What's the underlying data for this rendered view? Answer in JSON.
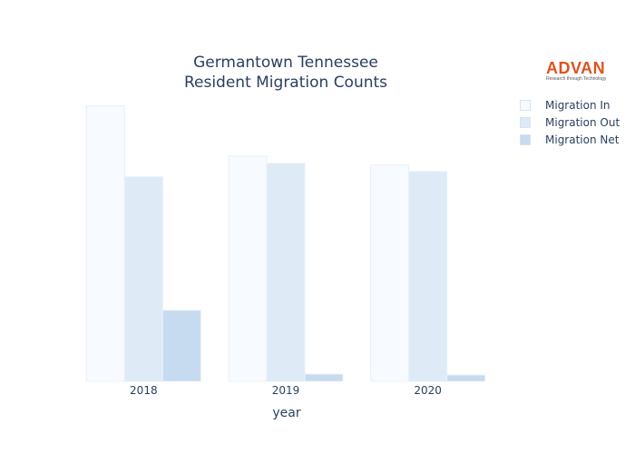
{
  "title_lines": [
    "Germantown Tennessee",
    "Resident Migration Counts"
  ],
  "logo": {
    "word": "ADVAN",
    "tagline": "Research through Technology",
    "color": "#e0521f"
  },
  "chart_data": {
    "type": "bar",
    "title": "Germantown Tennessee Resident Migration Counts",
    "xlabel": "year",
    "ylabel": "",
    "categories": [
      "2018",
      "2019",
      "2020"
    ],
    "series": [
      {
        "name": "Migration In",
        "values": [
          3065,
          2505,
          2405
        ],
        "color": "#f7fbff"
      },
      {
        "name": "Migration Out",
        "values": [
          2275,
          2425,
          2335
        ],
        "color": "#deebf7"
      },
      {
        "name": "Migration Net",
        "values": [
          790,
          80,
          70
        ],
        "color": "#c6dbef"
      }
    ],
    "ylim": [
      0,
      3080
    ],
    "y_axis_visible": false,
    "grid": false,
    "legend_position": "top-right"
  }
}
